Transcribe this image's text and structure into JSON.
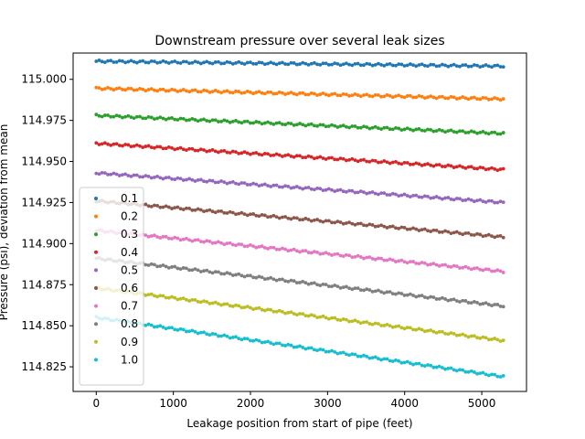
{
  "chart_data": {
    "type": "scatter",
    "title": "Downstream pressure over several leak sizes",
    "xlabel": "Leakage position from start of pipe (feet)",
    "ylabel": "Pressure (psi), deviation from mean",
    "xlim": [
      -300,
      5580
    ],
    "ylim": [
      114.81,
      115.016
    ],
    "x_ticks": [
      0,
      1000,
      2000,
      3000,
      4000,
      5000
    ],
    "y_ticks": [
      114.825,
      114.85,
      114.875,
      114.9,
      114.925,
      114.95,
      114.975,
      115.0
    ],
    "x_tick_labels": [
      "0",
      "1000",
      "2000",
      "3000",
      "4000",
      "5000"
    ],
    "y_tick_labels": [
      "114.825",
      "114.850",
      "114.875",
      "114.900",
      "114.925",
      "114.950",
      "114.975",
      "115.000"
    ],
    "grid": false,
    "legend_position": "lower-left",
    "x_range": [
      0,
      5280
    ],
    "series": [
      {
        "name": "0.1",
        "color": "#1f77b4",
        "x": [
          0,
          5280
        ],
        "y": [
          115.011,
          115.008
        ]
      },
      {
        "name": "0.2",
        "color": "#ff7f0e",
        "x": [
          0,
          5280
        ],
        "y": [
          114.9945,
          114.988
        ]
      },
      {
        "name": "0.3",
        "color": "#2ca02c",
        "x": [
          0,
          5280
        ],
        "y": [
          114.978,
          114.967
        ]
      },
      {
        "name": "0.4",
        "color": "#d62728",
        "x": [
          0,
          5280
        ],
        "y": [
          114.961,
          114.945
        ]
      },
      {
        "name": "0.5",
        "color": "#9467bd",
        "x": [
          0,
          5280
        ],
        "y": [
          114.943,
          114.925
        ]
      },
      {
        "name": "0.6",
        "color": "#8c564b",
        "x": [
          0,
          5280
        ],
        "y": [
          114.926,
          114.904
        ]
      },
      {
        "name": "0.7",
        "color": "#e377c2",
        "x": [
          0,
          5280
        ],
        "y": [
          114.908,
          114.883
        ]
      },
      {
        "name": "0.8",
        "color": "#7f7f7f",
        "x": [
          0,
          5280
        ],
        "y": [
          114.891,
          114.862
        ]
      },
      {
        "name": "0.9",
        "color": "#bcbd22",
        "x": [
          0,
          5280
        ],
        "y": [
          114.873,
          114.841
        ]
      },
      {
        "name": "1.0",
        "color": "#17becf",
        "x": [
          0,
          5280
        ],
        "y": [
          114.855,
          114.819
        ]
      }
    ]
  }
}
